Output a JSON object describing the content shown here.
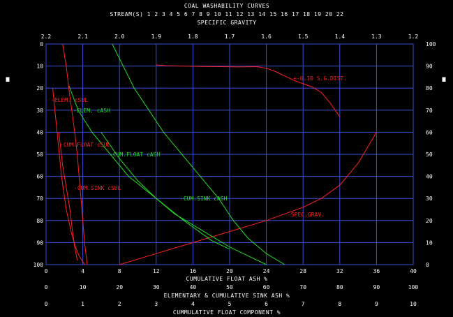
{
  "header": {
    "title": "COAL WASHABILITY CURVES",
    "streams": "STREAM(S) 1 2 3 4 5 6 7 8 9 10 11 12 13 14 15 16 17 18 19 20 22",
    "top_axis_label": "SPECIFIC GRAVITY"
  },
  "left_axis_label_chars": [
    "C",
    "U",
    "M",
    "M",
    "U",
    "L",
    "A",
    "T",
    "I",
    "V",
    "E",
    "",
    "%",
    "",
    "F",
    "L",
    "O",
    "A",
    "T"
  ],
  "right_axis_label_chars": [
    "C",
    "U",
    "M",
    "M",
    "U",
    "L",
    "A",
    "T",
    "I",
    "V",
    "E",
    "",
    "%",
    "",
    "S",
    "I",
    "N",
    "K"
  ],
  "bottom_axis_labels": {
    "float_ash": "CUMULATIVE FLOAT ASH %",
    "elem_sink_ash": "ELEMENTARY & CUMULATIVE SINK ASH %",
    "float_component": "CUMMULATIVE FLOAT COMPONENT %"
  },
  "colors": {
    "grid": "#3a4fd8",
    "red": "#ff2020",
    "green": "#22dd22",
    "text": "#ffffff",
    "background": "#000000"
  },
  "chart_data": {
    "type": "line",
    "title": "COAL WASHABILITY CURVES",
    "grid": true,
    "axes": {
      "left": {
        "label": "CUMMULATIVE % FLOAT",
        "range": [
          0,
          100
        ],
        "inverted": true,
        "ticks": [
          0,
          10,
          20,
          30,
          40,
          50,
          60,
          70,
          80,
          90,
          100
        ]
      },
      "right": {
        "label": "CUMMULATIVE % SINK",
        "range": [
          0,
          100
        ],
        "ticks": [
          100,
          90,
          80,
          70,
          60,
          50,
          40,
          30,
          20,
          10,
          0
        ]
      },
      "top": {
        "label": "SPECIFIC GRAVITY",
        "range": [
          2.2,
          1.2
        ],
        "ticks": [
          "2.2",
          "2.1",
          "2.0",
          "1.9",
          "1.8",
          "1.7",
          "1.6",
          "1.5",
          "1.4",
          "1.3",
          "1.2"
        ]
      },
      "bottom1": {
        "label": "CUMULATIVE FLOAT ASH %",
        "range": [
          0,
          40
        ],
        "ticks": [
          "0",
          "4",
          "8",
          "12",
          "16",
          "20",
          "24",
          "28",
          "32",
          "36",
          "40"
        ]
      },
      "bottom2": {
        "label": "ELEMENTARY & CUMULATIVE SINK ASH %",
        "range": [
          0,
          100
        ],
        "ticks": [
          "0",
          "10",
          "20",
          "30",
          "40",
          "50",
          "60",
          "70",
          "80",
          "90",
          "100"
        ]
      },
      "bottom3": {
        "label": "CUMMULATIVE FLOAT COMPONENT %",
        "range": [
          0,
          10
        ],
        "ticks": [
          "0",
          "1",
          "2",
          "3",
          "4",
          "5",
          "6",
          "7",
          "8",
          "9",
          "10"
        ]
      }
    },
    "series": [
      {
        "name": "+-0.10 S.G.DIST.",
        "color": "red",
        "axis": "float_ash",
        "points": [
          [
            12,
            9.5
          ],
          [
            13,
            9.8
          ],
          [
            15,
            10
          ],
          [
            17,
            10.2
          ],
          [
            19,
            10.3
          ],
          [
            21,
            10.4
          ],
          [
            23,
            10.3
          ],
          [
            24,
            11
          ],
          [
            25,
            12.5
          ],
          [
            26,
            14.5
          ],
          [
            27,
            16.5
          ],
          [
            28,
            18
          ],
          [
            29,
            19.5
          ],
          [
            30,
            22
          ],
          [
            31,
            27
          ],
          [
            32,
            33
          ]
        ]
      },
      {
        "name": "SPEC.GRAV.",
        "color": "red",
        "axis": "float_ash",
        "points": [
          [
            8,
            100
          ],
          [
            12,
            95
          ],
          [
            16,
            90
          ],
          [
            20,
            85
          ],
          [
            24,
            80
          ],
          [
            26,
            77
          ],
          [
            28,
            74
          ],
          [
            30,
            70
          ],
          [
            32,
            64
          ],
          [
            34,
            54
          ],
          [
            35,
            47
          ],
          [
            36,
            40
          ]
        ]
      },
      {
        "name": "ELEM. cSUL",
        "color": "red",
        "axis": "float_component",
        "points": [
          [
            0.45,
            0
          ],
          [
            0.55,
            10
          ],
          [
            0.62,
            20
          ],
          [
            0.7,
            30
          ],
          [
            0.78,
            40
          ],
          [
            0.85,
            50
          ],
          [
            0.9,
            60
          ],
          [
            0.95,
            70
          ],
          [
            1,
            80
          ],
          [
            1.05,
            90
          ],
          [
            1.12,
            100
          ]
        ]
      },
      {
        "name": "CUM.FLOAT cSUL",
        "color": "red",
        "axis": "float_component",
        "points": [
          [
            0.18,
            20
          ],
          [
            0.3,
            40
          ],
          [
            0.42,
            60
          ],
          [
            0.55,
            75
          ],
          [
            0.68,
            85
          ],
          [
            0.8,
            92
          ],
          [
            0.9,
            96
          ],
          [
            1.05,
            100
          ]
        ]
      },
      {
        "name": "CUM.SINK cSUL",
        "color": "red",
        "axis": "float_component",
        "points": [
          [
            0.35,
            40
          ],
          [
            0.45,
            55
          ],
          [
            0.55,
            65
          ],
          [
            0.65,
            75
          ],
          [
            0.72,
            85
          ],
          [
            0.78,
            92
          ],
          [
            0.85,
            98
          ]
        ]
      },
      {
        "name": "ELEM. cASH",
        "color": "green",
        "axis": "elem_sink_ash",
        "points": [
          [
            18,
            0
          ],
          [
            21,
            10
          ],
          [
            24,
            20
          ],
          [
            28,
            30
          ],
          [
            32,
            40
          ],
          [
            37,
            50
          ],
          [
            42,
            60
          ],
          [
            47,
            70
          ],
          [
            51,
            80
          ],
          [
            55,
            88
          ],
          [
            60,
            95
          ],
          [
            65,
            100
          ]
        ]
      },
      {
        "name": "CUM.FLOAT cASH",
        "color": "green",
        "axis": "float_ash",
        "points": [
          [
            2.5,
            19
          ],
          [
            3.5,
            30
          ],
          [
            5,
            40
          ],
          [
            7,
            50
          ],
          [
            9,
            60
          ],
          [
            12,
            70
          ],
          [
            15,
            80
          ],
          [
            18,
            89
          ],
          [
            20,
            93
          ]
        ]
      },
      {
        "name": "CUM.SINK cASH",
        "color": "green",
        "axis": "elem_sink_ash",
        "points": [
          [
            15,
            40
          ],
          [
            20,
            52
          ],
          [
            25,
            62
          ],
          [
            30,
            70
          ],
          [
            35,
            77
          ],
          [
            40,
            82
          ],
          [
            45,
            87
          ],
          [
            50,
            92
          ],
          [
            55,
            96
          ],
          [
            60,
            100
          ]
        ]
      }
    ],
    "annotations": [
      {
        "text": "+-0.10 S.G.DIST.",
        "color": "red"
      },
      {
        "text": "-ELEM. cSUL",
        "color": "red"
      },
      {
        "text": "-ELEM. cASH",
        "color": "green"
      },
      {
        "text": "-CUM.FLOAT cSUL",
        "color": "red"
      },
      {
        "text": "-CUM.FLOAT cASH",
        "color": "green"
      },
      {
        "text": "-CUM.SINK cSUL",
        "color": "red"
      },
      {
        "text": "-CUM.SINK cASH",
        "color": "green"
      },
      {
        "text": "-SPEC.GRAV.",
        "color": "red"
      }
    ]
  }
}
